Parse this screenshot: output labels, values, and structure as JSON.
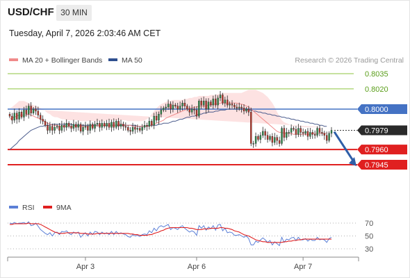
{
  "header": {
    "pair": "USD/CHF",
    "timeframe": "30 MIN",
    "datetime": "Tuesday, April 7, 2026 2:03:46 AM CET"
  },
  "colors": {
    "ma20": "#f08a8a",
    "bands": "#fde0e0",
    "ma50": "#4a5b8c",
    "candle_up": "#2f8f4e",
    "candle_down": "#c0392b",
    "level_green": "#8cc43f",
    "level_blue": "#4472c4",
    "level_red": "#e02020",
    "rsi": "#5b7fd6",
    "rsi_ma": "#e02020",
    "arrow": "#2f5fa8"
  },
  "chart_data": [
    {
      "type": "candlestick",
      "legend": [
        {
          "label": "MA 20 + Bollinger Bands",
          "color": "#f08a8a"
        },
        {
          "label": "MA 50",
          "color": "#2f4f8f"
        }
      ],
      "credit": "Research © 2026 Trading Central",
      "ylim": [
        0.7925,
        0.805
      ],
      "x_ticks": [
        {
          "label": "Apr 3",
          "index": 32
        },
        {
          "label": "Apr 6",
          "index": 79
        },
        {
          "label": "Apr 7",
          "index": 124
        }
      ],
      "levels": [
        {
          "value": 0.8035,
          "label": "0.8035",
          "style": "green-line"
        },
        {
          "value": 0.802,
          "label": "0.8020",
          "style": "green-line"
        },
        {
          "value": 0.8,
          "label": "0.8000",
          "style": "blue-box"
        },
        {
          "value": 0.7979,
          "label": "0.7979",
          "style": "current"
        },
        {
          "value": 0.796,
          "label": "0.7960",
          "style": "red-box"
        },
        {
          "value": 0.7945,
          "label": "0.7945",
          "style": "red-box"
        }
      ],
      "forecast_arrow": {
        "from": 0.7979,
        "to": 0.7945
      },
      "series": {
        "close": [
          0.7993,
          0.7989,
          0.7996,
          0.799,
          0.7997,
          0.7992,
          0.7999,
          0.7995,
          0.8003,
          0.7996,
          0.8,
          0.7998,
          0.7994,
          0.799,
          0.7988,
          0.7984,
          0.7979,
          0.7983,
          0.7979,
          0.7982,
          0.7983,
          0.7979,
          0.7984,
          0.7982,
          0.7986,
          0.7983,
          0.7981,
          0.7985,
          0.7982,
          0.7985,
          0.7978,
          0.7982,
          0.7983,
          0.7979,
          0.7985,
          0.7981,
          0.7985,
          0.7986,
          0.7982,
          0.7986,
          0.7983,
          0.7986,
          0.7982,
          0.7987,
          0.7982,
          0.7988,
          0.7983,
          0.7985,
          0.7983,
          0.7982,
          0.7979,
          0.7978,
          0.7982,
          0.798,
          0.7981,
          0.7979,
          0.7982,
          0.7984,
          0.7983,
          0.7988,
          0.7984,
          0.7993,
          0.7989,
          0.7995,
          0.7999,
          0.8001,
          0.8002,
          0.8005,
          0.8,
          0.8004,
          0.8003,
          0.8,
          0.8003,
          0.8006,
          0.8003,
          0.8,
          0.7997,
          0.8,
          0.7999,
          0.7993,
          0.8008,
          0.8004,
          0.8008,
          0.8,
          0.8007,
          0.8004,
          0.801,
          0.8004,
          0.8011,
          0.8014,
          0.8006,
          0.8009,
          0.8004,
          0.8005,
          0.8004,
          0.8002,
          0.8001,
          0.8002,
          0.8001,
          0.7998,
          0.8,
          0.7997,
          0.7966,
          0.7966,
          0.7973,
          0.797,
          0.7974,
          0.7978,
          0.7974,
          0.797,
          0.7973,
          0.7967,
          0.7972,
          0.7969,
          0.7966,
          0.7981,
          0.7972,
          0.7977,
          0.7977,
          0.7981,
          0.798,
          0.7975,
          0.7981,
          0.7977,
          0.7976,
          0.7978,
          0.7973,
          0.7977,
          0.7975,
          0.7974,
          0.7981,
          0.7977,
          0.7976,
          0.7974,
          0.7969,
          0.7976,
          0.7979
        ],
        "ma20": [
          0.799,
          0.7991,
          0.7992,
          0.7993,
          0.7994,
          0.7994,
          0.7994,
          0.7994,
          0.7995,
          0.7994,
          0.7993,
          0.7992,
          0.7991,
          0.799,
          0.7989,
          0.7987,
          0.7986,
          0.7985,
          0.7984,
          0.7984,
          0.7984,
          0.7983,
          0.7983,
          0.7983,
          0.7983,
          0.7983,
          0.7983,
          0.7983,
          0.7983,
          0.7983,
          0.7983,
          0.7983,
          0.7983,
          0.7983,
          0.7983,
          0.7983,
          0.7983,
          0.7984,
          0.7984,
          0.7984,
          0.7984,
          0.7984,
          0.7984,
          0.7984,
          0.7984,
          0.7984,
          0.7985,
          0.7985,
          0.7985,
          0.7984,
          0.7984,
          0.7984,
          0.7983,
          0.7983,
          0.7983,
          0.7983,
          0.7983,
          0.7983,
          0.7983,
          0.7983,
          0.7984,
          0.7985,
          0.7986,
          0.7987,
          0.7988,
          0.7989,
          0.7991,
          0.7992,
          0.7993,
          0.7994,
          0.7995,
          0.7996,
          0.7997,
          0.7998,
          0.7999,
          0.8,
          0.8001,
          0.8001,
          0.8002,
          0.8002,
          0.8003,
          0.8003,
          0.8003,
          0.8003,
          0.8004,
          0.8004,
          0.8005,
          0.8005,
          0.8005,
          0.8006,
          0.8006,
          0.8006,
          0.8006,
          0.8006,
          0.8006,
          0.8006,
          0.8006,
          0.8005,
          0.8005,
          0.8004,
          0.8003,
          0.8002,
          0.8,
          0.7998,
          0.7996,
          0.7994,
          0.7992,
          0.799,
          0.7988,
          0.7986,
          0.7984,
          0.7982,
          0.798,
          0.7978,
          0.7977,
          0.7977,
          0.7976,
          0.7976,
          0.7976,
          0.7976,
          0.7975,
          0.7975,
          0.7975,
          0.7975,
          0.7975,
          0.7975,
          0.7975,
          0.7975,
          0.7976,
          0.7976,
          0.7976,
          0.7976,
          0.7976,
          0.7976,
          0.7976
        ],
        "upper_band": [
          0.8001,
          0.8002,
          0.8004,
          0.8006,
          0.8008,
          0.8008,
          0.8008,
          0.8007,
          0.8006,
          0.8005,
          0.8004,
          0.8003,
          0.8002,
          0.8001,
          0.8,
          0.7998,
          0.7996,
          0.7995,
          0.7993,
          0.7992,
          0.7992,
          0.7991,
          0.799,
          0.799,
          0.7989,
          0.7989,
          0.7989,
          0.7989,
          0.7989,
          0.7989,
          0.7988,
          0.7988,
          0.7988,
          0.7988,
          0.7988,
          0.7988,
          0.7988,
          0.7988,
          0.7988,
          0.7988,
          0.7988,
          0.7989,
          0.7989,
          0.7989,
          0.7989,
          0.7989,
          0.7989,
          0.7989,
          0.7989,
          0.7989,
          0.7988,
          0.7988,
          0.7988,
          0.7988,
          0.7988,
          0.7988,
          0.7988,
          0.7989,
          0.799,
          0.7992,
          0.7995,
          0.7998,
          0.8001,
          0.8003,
          0.8005,
          0.8006,
          0.8007,
          0.8008,
          0.8008,
          0.8009,
          0.8009,
          0.8009,
          0.8009,
          0.8009,
          0.801,
          0.801,
          0.8011,
          0.8011,
          0.8012,
          0.8012,
          0.8013,
          0.8013,
          0.8013,
          0.8013,
          0.8013,
          0.8014,
          0.8014,
          0.8014,
          0.8015,
          0.8015,
          0.8016,
          0.8016,
          0.8016,
          0.8016,
          0.8016,
          0.8016,
          0.8016,
          0.8016,
          0.8016,
          0.8017,
          0.8018,
          0.8019,
          0.8019,
          0.8019,
          0.8019,
          0.8018,
          0.8017,
          0.8016,
          0.8014,
          0.8012,
          0.8009,
          0.8006,
          0.8002,
          0.7997,
          0.7993,
          0.7989,
          0.7987,
          0.7986,
          0.7985,
          0.7984,
          0.7983,
          0.7983,
          0.7983,
          0.7982,
          0.7982,
          0.7982,
          0.7982,
          0.7982,
          0.7982,
          0.7982,
          0.7982,
          0.7982,
          0.7982,
          0.7982,
          0.7982
        ],
        "lower_band": [
          0.7979,
          0.7978,
          0.7977,
          0.7977,
          0.7978,
          0.7979,
          0.798,
          0.798,
          0.7981,
          0.7981,
          0.7981,
          0.798,
          0.7979,
          0.7978,
          0.7977,
          0.7976,
          0.7976,
          0.7976,
          0.7976,
          0.7976,
          0.7976,
          0.7976,
          0.7976,
          0.7976,
          0.7976,
          0.7976,
          0.7976,
          0.7977,
          0.7977,
          0.7977,
          0.7977,
          0.7977,
          0.7978,
          0.7978,
          0.7978,
          0.7978,
          0.7978,
          0.7978,
          0.7978,
          0.7978,
          0.7978,
          0.7978,
          0.7978,
          0.7978,
          0.7978,
          0.7978,
          0.7978,
          0.7978,
          0.7978,
          0.7978,
          0.7977,
          0.7977,
          0.7977,
          0.7977,
          0.7977,
          0.7977,
          0.7977,
          0.7977,
          0.7976,
          0.7975,
          0.7974,
          0.7973,
          0.7972,
          0.7972,
          0.7972,
          0.7973,
          0.7975,
          0.7976,
          0.7978,
          0.798,
          0.7982,
          0.7984,
          0.7986,
          0.7988,
          0.7989,
          0.799,
          0.7991,
          0.7992,
          0.7993,
          0.7993,
          0.7993,
          0.7993,
          0.7994,
          0.7994,
          0.7994,
          0.7994,
          0.7995,
          0.7995,
          0.7995,
          0.7995,
          0.7995,
          0.7995,
          0.7995,
          0.7995,
          0.7995,
          0.7994,
          0.7993,
          0.7991,
          0.7988,
          0.7984,
          0.7979,
          0.7973,
          0.7968,
          0.7965,
          0.7963,
          0.7962,
          0.7961,
          0.7961,
          0.7961,
          0.7961,
          0.7961,
          0.7961,
          0.7961,
          0.7962,
          0.7963,
          0.7964,
          0.7965,
          0.7966,
          0.7967,
          0.7967,
          0.7967,
          0.7968,
          0.7968,
          0.7968,
          0.7968,
          0.7969,
          0.7969,
          0.7969,
          0.797,
          0.797,
          0.797,
          0.797,
          0.797,
          0.797,
          0.7971
        ],
        "ma50": [
          0.796,
          0.7962,
          0.7964,
          0.7966,
          0.7969,
          0.7971,
          0.7973,
          0.7975,
          0.7977,
          0.7979,
          0.798,
          0.7981,
          0.7982,
          0.7983,
          0.7983,
          0.7984,
          0.7984,
          0.7984,
          0.7985,
          0.7985,
          0.7985,
          0.7985,
          0.7985,
          0.7985,
          0.7985,
          0.7985,
          0.7985,
          0.7984,
          0.7984,
          0.7984,
          0.7984,
          0.7984,
          0.7984,
          0.7984,
          0.7984,
          0.7984,
          0.7984,
          0.7984,
          0.7984,
          0.7984,
          0.7984,
          0.7984,
          0.7984,
          0.7984,
          0.7984,
          0.7984,
          0.7984,
          0.7984,
          0.7984,
          0.7984,
          0.7984,
          0.7984,
          0.7984,
          0.7984,
          0.7983,
          0.7983,
          0.7983,
          0.7983,
          0.7983,
          0.7984,
          0.7984,
          0.7984,
          0.7984,
          0.7985,
          0.7985,
          0.7986,
          0.7986,
          0.7986,
          0.7987,
          0.7988,
          0.7988,
          0.7989,
          0.799,
          0.799,
          0.7991,
          0.7992,
          0.7992,
          0.7993,
          0.7993,
          0.7994,
          0.7995,
          0.7995,
          0.7996,
          0.7996,
          0.7997,
          0.7997,
          0.7997,
          0.7998,
          0.7998,
          0.7999,
          0.7999,
          0.7999,
          0.8,
          0.8,
          0.8,
          0.8,
          0.8,
          0.8,
          0.8,
          0.8,
          0.8,
          0.7999,
          0.7999,
          0.7998,
          0.7998,
          0.7997,
          0.7997,
          0.7996,
          0.7996,
          0.7995,
          0.7995,
          0.7994,
          0.7994,
          0.7993,
          0.7993,
          0.7992,
          0.7992,
          0.7991,
          0.7991,
          0.799,
          0.799,
          0.7989,
          0.7989,
          0.7988,
          0.7988,
          0.7987,
          0.7987,
          0.7986,
          0.7986,
          0.7985,
          0.7985,
          0.7984,
          0.7984,
          0.7983,
          0.7983
        ]
      }
    },
    {
      "type": "line",
      "legend": [
        {
          "label": "RSI",
          "color": "#5b7fd6"
        },
        {
          "label": "9MA",
          "color": "#e02020"
        }
      ],
      "ylim": [
        20,
        80
      ],
      "y_ticks": [
        70,
        50,
        30
      ],
      "series": [
        {
          "name": "RSI",
          "values": [
            70,
            69,
            71,
            69,
            70,
            70,
            71,
            69,
            72,
            66,
            67,
            70,
            65,
            60,
            57,
            54,
            52,
            55,
            50,
            55,
            56,
            52,
            57,
            56,
            58,
            54,
            52,
            56,
            54,
            56,
            48,
            52,
            55,
            50,
            56,
            52,
            57,
            56,
            52,
            56,
            53,
            55,
            52,
            57,
            52,
            57,
            53,
            55,
            53,
            52,
            49,
            48,
            52,
            50,
            51,
            49,
            52,
            53,
            52,
            58,
            55,
            62,
            58,
            64,
            66,
            64,
            66,
            68,
            60,
            63,
            62,
            60,
            64,
            66,
            62,
            59,
            56,
            58,
            56,
            51,
            66,
            62,
            66,
            59,
            64,
            61,
            66,
            59,
            67,
            68,
            58,
            62,
            55,
            56,
            55,
            51,
            51,
            52,
            50,
            48,
            50,
            46,
            36,
            36,
            42,
            40,
            44,
            47,
            44,
            40,
            43,
            36,
            41,
            38,
            35,
            48,
            40,
            45,
            44,
            47,
            48,
            43,
            48,
            44,
            44,
            46,
            42,
            45,
            43,
            43,
            48,
            44,
            45,
            44,
            40,
            46,
            48
          ]
        },
        {
          "name": "9MA",
          "values": [
            68,
            68,
            69,
            69,
            69,
            69,
            69,
            69,
            70,
            69,
            69,
            69,
            69,
            68,
            66,
            64,
            62,
            60,
            58,
            56,
            55,
            54,
            54,
            54,
            55,
            55,
            55,
            55,
            55,
            55,
            54,
            54,
            54,
            53,
            53,
            53,
            53,
            54,
            54,
            54,
            54,
            54,
            54,
            54,
            54,
            54,
            54,
            54,
            54,
            54,
            54,
            53,
            53,
            52,
            52,
            51,
            51,
            51,
            51,
            52,
            52,
            54,
            55,
            56,
            58,
            59,
            61,
            62,
            63,
            63,
            63,
            63,
            63,
            63,
            63,
            63,
            62,
            62,
            61,
            60,
            60,
            60,
            61,
            61,
            61,
            62,
            62,
            62,
            62,
            63,
            63,
            62,
            62,
            61,
            60,
            58,
            57,
            56,
            54,
            52,
            51,
            50,
            48,
            46,
            44,
            43,
            42,
            41,
            41,
            40,
            40,
            40,
            40,
            40,
            40,
            40,
            41,
            41,
            42,
            42,
            43,
            43,
            44,
            44,
            45,
            45,
            45,
            45,
            45,
            45,
            45,
            45,
            45,
            45,
            45,
            45,
            45
          ]
        }
      ]
    }
  ]
}
